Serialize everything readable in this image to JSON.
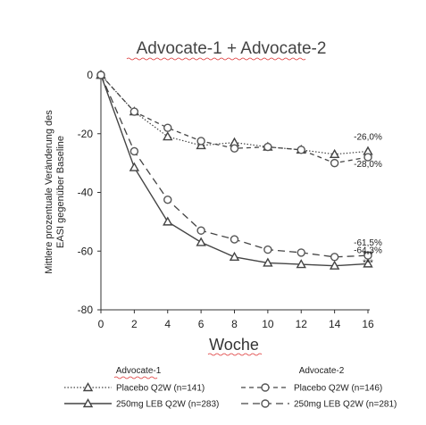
{
  "chart_data": {
    "type": "line",
    "title": "Advocate-1 + Advocate-2",
    "xlabel": "Woche",
    "ylabel_lines": [
      "Mittlere prozentuale Veränderung des",
      "EASI gegenüber Baseline"
    ],
    "x": [
      0,
      2,
      4,
      6,
      8,
      10,
      12,
      14,
      16
    ],
    "xticks": [
      "0",
      "2",
      "4",
      "6",
      "8",
      "10",
      "12",
      "14",
      "16"
    ],
    "yticks": [
      "0",
      "-20",
      "-40",
      "-60",
      "-80"
    ],
    "xlim": [
      0,
      16
    ],
    "ylim": [
      -80,
      0
    ],
    "grid": false,
    "series": [
      {
        "name": "Placebo Q2W (n=141)",
        "study": "Advocate-1",
        "marker": "triangle",
        "dash": "dotted",
        "values": [
          0,
          -12.5,
          -21,
          -24,
          -23,
          -24.5,
          -25.5,
          -27,
          -26
        ]
      },
      {
        "name": "250mg LEB Q2W (n=283)",
        "study": "Advocate-1",
        "marker": "triangle",
        "dash": "solid",
        "values": [
          0,
          -31.5,
          -50,
          -57,
          -62,
          -64,
          -64.5,
          -65,
          -64.3
        ]
      },
      {
        "name": "Placebo Q2W (n=146)",
        "study": "Advocate-2",
        "marker": "circle",
        "dash": "dashed",
        "values": [
          0,
          -12.5,
          -18,
          -22.5,
          -25,
          -24.5,
          -25.5,
          -30,
          -28
        ]
      },
      {
        "name": "250mg LEB Q2W (n=281)",
        "study": "Advocate-2",
        "marker": "circle",
        "dash": "longdash",
        "values": [
          0,
          -26,
          -42.5,
          -53,
          -56,
          -59.5,
          -60.5,
          -62,
          -61.5
        ]
      }
    ],
    "annotations": [
      {
        "text": "-26,0%",
        "x": 16,
        "y": -26
      },
      {
        "text": "-28,0%",
        "x": 16,
        "y": -28
      },
      {
        "text": "-61,5%",
        "x": 16,
        "y": -61.5
      },
      {
        "text": "***",
        "x": 16,
        "y": -61.5
      },
      {
        "text": "-64,3%",
        "x": 16,
        "y": -64.3
      },
      {
        "text": "***",
        "x": 16,
        "y": -64.3
      }
    ],
    "legend": {
      "placement": "bottom",
      "groups": [
        "Advocate-1",
        "Advocate-2"
      ]
    }
  }
}
